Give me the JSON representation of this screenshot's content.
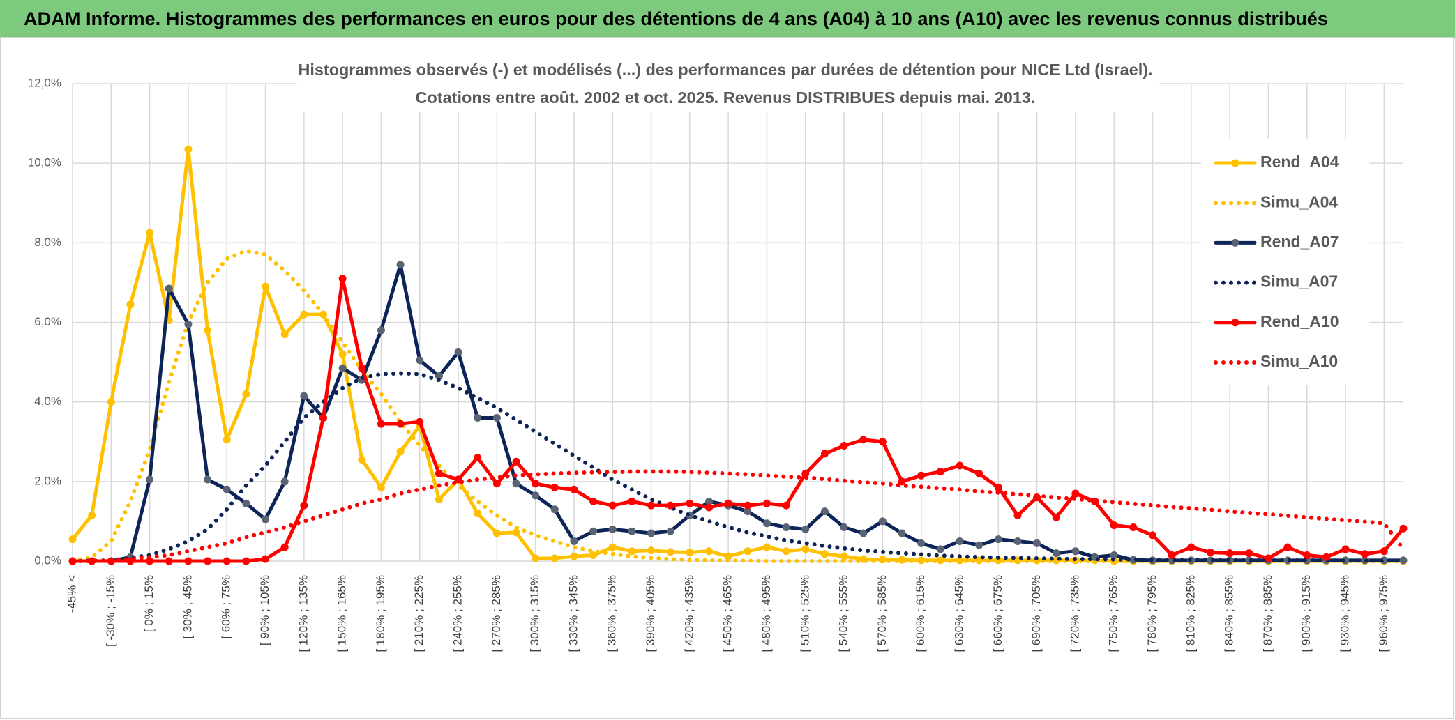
{
  "chart_data": {
    "type": "line",
    "header": "ADAM Informe. Histogrammes des performances en euros pour des détentions de 4 ans (A04) à 10 ans (A10) avec les revenus connus distribués",
    "title": [
      "Histogrammes observés (-) et modélisés (...) des performances par durées de détention pour NICE Ltd (Israel).",
      "Cotations entre août. 2002 et oct. 2025. Revenus DISTRIBUES depuis mai. 2013."
    ],
    "categories": [
      "-45% <",
      null,
      "[ -30% ; -15%",
      null,
      "[ 0% ; 15%",
      null,
      "[ 30% ; 45%",
      null,
      "[ 60% ; 75%",
      null,
      "[ 90% ; 105%",
      null,
      "[ 120% ; 135%",
      null,
      "[ 150% ; 165%",
      null,
      "[ 180% ; 195%",
      null,
      "[ 210% ; 225%",
      null,
      "[ 240% ; 255%",
      null,
      "[ 270% ; 285%",
      null,
      "[ 300% ; 315%",
      null,
      "[ 330% ; 345%",
      null,
      "[ 360% ; 375%",
      null,
      "[ 390% ; 405%",
      null,
      "[ 420% ; 435%",
      null,
      "[ 450% ; 465%",
      null,
      "[ 480% ; 495%",
      null,
      "[ 510% ; 525%",
      null,
      "[ 540% ; 555%",
      null,
      "[ 570% ; 585%",
      null,
      "[ 600% ; 615%",
      null,
      "[ 630% ; 645%",
      null,
      "[ 660% ; 675%",
      null,
      "[ 690% ; 705%",
      null,
      "[ 720% ; 735%",
      null,
      "[ 750% ; 765%",
      null,
      "[ 780% ; 795%",
      null,
      "[ 810% ; 825%",
      null,
      "[ 840% ; 855%",
      null,
      "[ 870% ; 885%",
      null,
      "[ 900% ; 915%",
      null,
      "[ 930% ; 945%",
      null,
      "[ 960% ; 975%",
      null
    ],
    "series": [
      {
        "name": "Rend_A04",
        "color": "#ffc000",
        "line_style": "solid",
        "marker_color": "#ffc000",
        "values": [
          0.55,
          1.15,
          4.0,
          6.45,
          8.25,
          6.05,
          10.35,
          5.8,
          3.05,
          4.2,
          6.9,
          5.7,
          6.2,
          6.2,
          5.2,
          2.55,
          1.85,
          2.75,
          3.4,
          1.55,
          2.05,
          1.2,
          0.7,
          0.72,
          0.07,
          0.07,
          0.12,
          0.15,
          0.35,
          0.25,
          0.27,
          0.23,
          0.22,
          0.25,
          0.12,
          0.25,
          0.35,
          0.25,
          0.3,
          0.18,
          0.12,
          0.05,
          0.04,
          0.03,
          0.02,
          0.02,
          0.02,
          0.02,
          0.02,
          0.02,
          0.02,
          0.02,
          0.02,
          0.02,
          0,
          0,
          0,
          0,
          0,
          0,
          0,
          0,
          0,
          0,
          0,
          0,
          0,
          0,
          0,
          0
        ]
      },
      {
        "name": "Simu_A04",
        "color": "#ffc000",
        "line_style": "dotted",
        "values": [
          0,
          0.1,
          0.5,
          1.5,
          2.8,
          4.5,
          6.0,
          7.0,
          7.6,
          7.8,
          7.7,
          7.3,
          6.8,
          6.2,
          5.5,
          4.8,
          4.2,
          3.5,
          2.9,
          2.4,
          1.9,
          1.5,
          1.15,
          0.85,
          0.65,
          0.5,
          0.35,
          0.25,
          0.18,
          0.12,
          0.08,
          0.05,
          0.03,
          0.02,
          0.01,
          0.01,
          0,
          0,
          0,
          0,
          0,
          0,
          0,
          0,
          0,
          0,
          0,
          0,
          0,
          0,
          0,
          0,
          0,
          0,
          0,
          0,
          0,
          0,
          0,
          0,
          0,
          0,
          0,
          0,
          0,
          0,
          0,
          0,
          0,
          0
        ]
      },
      {
        "name": "Rend_A07",
        "color": "#0c2457",
        "line_style": "solid",
        "marker_color": "#5a6373",
        "values": [
          0,
          0,
          0,
          0.1,
          2.05,
          6.85,
          5.95,
          2.05,
          1.8,
          1.45,
          1.05,
          2.0,
          4.15,
          3.6,
          4.85,
          4.55,
          5.8,
          7.45,
          5.05,
          4.65,
          5.25,
          3.6,
          3.6,
          1.95,
          1.65,
          1.3,
          0.5,
          0.75,
          0.8,
          0.75,
          0.7,
          0.75,
          1.15,
          1.5,
          1.4,
          1.25,
          0.95,
          0.85,
          0.8,
          1.25,
          0.85,
          0.7,
          1.0,
          0.7,
          0.45,
          0.3,
          0.5,
          0.4,
          0.55,
          0.5,
          0.45,
          0.2,
          0.25,
          0.1,
          0.15,
          0.03,
          0.02,
          0.02,
          0.02,
          0.02,
          0.02,
          0.02,
          0.02,
          0.02,
          0.02,
          0.02,
          0.02,
          0.02,
          0.02,
          0.02
        ]
      },
      {
        "name": "Simu_A07",
        "color": "#0c2457",
        "line_style": "dotted",
        "values": [
          0,
          0.01,
          0.02,
          0.08,
          0.15,
          0.3,
          0.5,
          0.8,
          1.3,
          1.9,
          2.4,
          3.0,
          3.6,
          4.0,
          4.35,
          4.6,
          4.7,
          4.72,
          4.7,
          4.55,
          4.35,
          4.1,
          3.85,
          3.55,
          3.25,
          2.95,
          2.65,
          2.35,
          2.05,
          1.8,
          1.55,
          1.35,
          1.15,
          1.0,
          0.85,
          0.72,
          0.62,
          0.52,
          0.45,
          0.38,
          0.32,
          0.27,
          0.23,
          0.2,
          0.17,
          0.14,
          0.12,
          0.1,
          0.09,
          0.08,
          0.07,
          0.06,
          0.05,
          0.05,
          0.04,
          0.04,
          0.03,
          0.03,
          0.03,
          0.03,
          0.02,
          0.02,
          0.02,
          0.02,
          0.02,
          0.02,
          0.01,
          0.01,
          0.01,
          0.01
        ]
      },
      {
        "name": "Rend_A10",
        "color": "#ff0000",
        "line_style": "solid",
        "marker_color": "#ff0000",
        "values": [
          0,
          0,
          0,
          0,
          0,
          0,
          0,
          0,
          0,
          0,
          0.05,
          0.35,
          1.4,
          3.6,
          7.1,
          4.85,
          3.45,
          3.45,
          3.5,
          2.2,
          2.05,
          2.6,
          1.95,
          2.5,
          1.95,
          1.85,
          1.8,
          1.5,
          1.4,
          1.5,
          1.4,
          1.4,
          1.45,
          1.35,
          1.45,
          1.4,
          1.45,
          1.4,
          2.2,
          2.7,
          2.9,
          3.05,
          3.0,
          2.0,
          2.15,
          2.25,
          2.4,
          2.2,
          1.85,
          1.15,
          1.6,
          1.1,
          1.7,
          1.5,
          0.9,
          0.85,
          0.65,
          0.15,
          0.35,
          0.22,
          0.2,
          0.2,
          0.07,
          0.35,
          0.15,
          0.1,
          0.3,
          0.18,
          0.25,
          0.82
        ]
      },
      {
        "name": "Simu_A10",
        "color": "#ff0000",
        "line_style": "dotted",
        "values": [
          0,
          0,
          0.02,
          0.05,
          0.1,
          0.15,
          0.25,
          0.35,
          0.45,
          0.6,
          0.72,
          0.85,
          1.0,
          1.15,
          1.3,
          1.45,
          1.55,
          1.7,
          1.8,
          1.9,
          1.98,
          2.05,
          2.1,
          2.15,
          2.18,
          2.2,
          2.22,
          2.23,
          2.24,
          2.25,
          2.25,
          2.25,
          2.24,
          2.22,
          2.2,
          2.18,
          2.15,
          2.12,
          2.1,
          2.06,
          2.02,
          1.98,
          1.95,
          1.9,
          1.87,
          1.83,
          1.8,
          1.75,
          1.72,
          1.68,
          1.64,
          1.6,
          1.56,
          1.52,
          1.48,
          1.44,
          1.4,
          1.36,
          1.33,
          1.29,
          1.25,
          1.21,
          1.18,
          1.14,
          1.1,
          1.06,
          1.03,
          0.99,
          0.95,
          0.3
        ]
      }
    ],
    "ylim": [
      0,
      12
    ],
    "yticks": [
      {
        "value": 0,
        "label": "0,0%"
      },
      {
        "value": 2,
        "label": "2,0%"
      },
      {
        "value": 4,
        "label": "4,0%"
      },
      {
        "value": 6,
        "label": "6,0%"
      },
      {
        "value": 8,
        "label": "8,0%"
      },
      {
        "value": 10,
        "label": "10,0%"
      },
      {
        "value": 12,
        "label": "12,0%"
      }
    ],
    "grid": true,
    "legend": "right"
  }
}
